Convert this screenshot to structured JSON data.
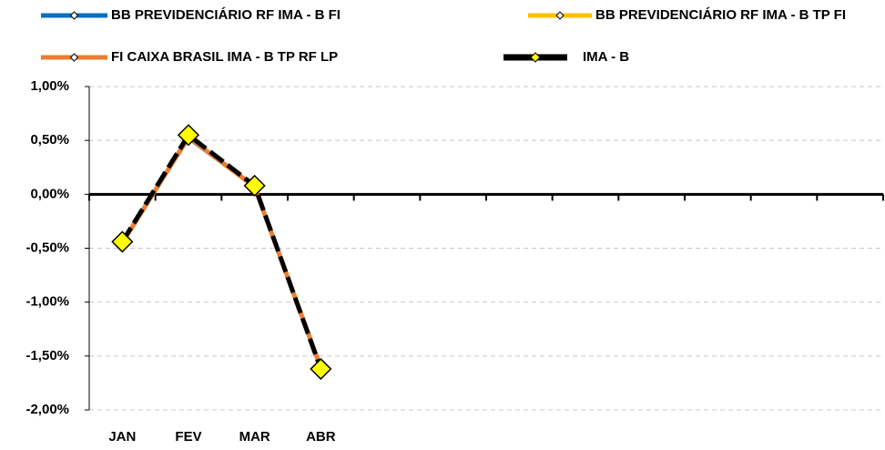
{
  "chart_data": {
    "type": "line",
    "categories": [
      "JAN",
      "FEV",
      "MAR",
      "ABR",
      null,
      null,
      null,
      null,
      null,
      null,
      null,
      null
    ],
    "series": [
      {
        "name": "BB PREVIDENCIÁRIO RF IMA - B FI",
        "color": "#0070c0",
        "values": [
          -0.45,
          0.52,
          0.07,
          -1.6,
          null,
          null,
          null,
          null,
          null,
          null,
          null,
          null
        ]
      },
      {
        "name": "BB PREVIDENCIÁRIO RF IMA - B TP FI",
        "color": "#ffc000",
        "values": [
          -0.45,
          0.53,
          0.07,
          -1.61,
          null,
          null,
          null,
          null,
          null,
          null,
          null,
          null
        ]
      },
      {
        "name": "FI CAIXA BRASIL IMA - B TP RF LP",
        "color": "#ed7d31",
        "values": [
          -0.45,
          0.53,
          0.07,
          -1.61,
          null,
          null,
          null,
          null,
          null,
          null,
          null,
          null
        ]
      },
      {
        "name": "IMA - B",
        "color": "#000000",
        "marker": "diamond",
        "values": [
          -0.44,
          0.55,
          0.08,
          -1.62,
          null,
          null,
          null,
          null,
          null,
          null,
          null,
          null
        ]
      }
    ],
    "ylim": [
      -2,
      1
    ],
    "yticks": [
      {
        "value": -2,
        "label": "-2,00%"
      },
      {
        "value": -1.5,
        "label": "-1,50%"
      },
      {
        "value": -1,
        "label": "-1,00%"
      },
      {
        "value": -0.5,
        "label": "-0,50%"
      },
      {
        "value": 0,
        "label": "0,00%"
      },
      {
        "value": 0.5,
        "label": "0,50%"
      },
      {
        "value": 1,
        "label": "1,00%"
      }
    ],
    "grid": true
  }
}
